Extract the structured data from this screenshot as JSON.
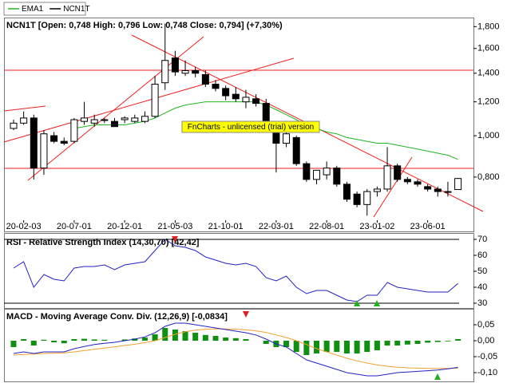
{
  "chart_data": [
    {
      "type": "candlestick",
      "title": "NCN1T [Open: 0,748 High: 0,796 Low: 0,748 Close: 0,794] (+7,30%)",
      "watermark": "FnCharts - unlicensed (trial) version",
      "categories": [
        null,
        "20-02-03",
        null,
        null,
        null,
        null,
        "20-07-01",
        null,
        null,
        null,
        null,
        "20-12-01",
        null,
        null,
        null,
        null,
        "21-05-03",
        null,
        null,
        null,
        null,
        "21-10-01",
        null,
        null,
        null,
        null,
        "22-03-01",
        null,
        null,
        null,
        null,
        "22-08-01",
        null,
        null,
        null,
        null,
        "23-01-02",
        null,
        null,
        null,
        null,
        "23-06-01",
        null,
        null,
        null
      ],
      "log_scale": true,
      "ylim": [
        0.61,
        1.89
      ],
      "yticks": [
        {
          "value": 1.8,
          "label": "1,800"
        },
        {
          "value": 1.6,
          "label": "1,600"
        },
        {
          "value": 1.4,
          "label": "1,400"
        },
        {
          "value": 1.2,
          "label": "1,200"
        },
        {
          "value": 1.0,
          "label": "1,000"
        },
        {
          "value": 0.8,
          "label": "0,800"
        }
      ],
      "series": [
        {
          "name": "EMA1",
          "type": "line",
          "color": "#22b422",
          "values": [
            null,
            null,
            null,
            null,
            null,
            null,
            1.04,
            1.05,
            1.06,
            1.06,
            1.06,
            1.06,
            1.07,
            1.08,
            1.1,
            1.13,
            1.16,
            1.18,
            1.19,
            1.2,
            1.2,
            1.2,
            1.2,
            1.2,
            1.2,
            1.18,
            1.15,
            1.12,
            1.09,
            1.06,
            1.04,
            1.02,
            1.01,
            0.99,
            0.98,
            0.97,
            0.96,
            0.96,
            0.95,
            0.94,
            0.93,
            0.92,
            0.91,
            0.9,
            0.88
          ]
        },
        {
          "name": "NCN1T",
          "type": "candlestick",
          "color": "#000000",
          "open": [
            1.04,
            1.07,
            1.1,
            0.84,
            1.0,
            0.97,
            0.97,
            1.08,
            1.07,
            1.09,
            1.08,
            1.09,
            1.08,
            1.08,
            1.11,
            1.33,
            1.52,
            1.4,
            1.42,
            1.39,
            1.32,
            1.29,
            1.25,
            1.2,
            1.22,
            1.19,
            1.05,
            0.96,
            0.99,
            0.86,
            0.79,
            0.81,
            0.84,
            0.77,
            0.73,
            0.69,
            0.74,
            0.75,
            0.85,
            0.79,
            0.78,
            0.76,
            0.75,
            0.74,
            0.748
          ],
          "high": [
            1.09,
            1.14,
            1.12,
            1.03,
            1.02,
            0.99,
            1.1,
            1.2,
            1.12,
            1.1,
            1.1,
            1.11,
            1.12,
            1.14,
            1.38,
            1.83,
            1.58,
            1.5,
            1.45,
            1.42,
            1.35,
            1.31,
            1.3,
            1.28,
            1.25,
            1.22,
            1.07,
            1.02,
            1.0,
            0.87,
            0.83,
            0.87,
            0.85,
            0.78,
            0.74,
            0.75,
            0.76,
            0.94,
            0.86,
            0.8,
            0.79,
            0.77,
            0.76,
            0.78,
            0.796
          ],
          "low": [
            1.03,
            1.06,
            0.79,
            0.81,
            0.96,
            0.95,
            0.96,
            1.06,
            1.05,
            1.07,
            1.05,
            1.07,
            1.07,
            1.07,
            1.1,
            1.28,
            1.38,
            1.38,
            1.37,
            1.3,
            1.27,
            1.21,
            1.2,
            1.16,
            1.17,
            1.03,
            0.82,
            0.94,
            0.85,
            0.78,
            0.77,
            0.79,
            0.76,
            0.7,
            0.68,
            0.65,
            0.72,
            0.74,
            0.78,
            0.77,
            0.76,
            0.74,
            0.72,
            0.72,
            0.748
          ],
          "close": [
            1.07,
            1.1,
            0.84,
            1.01,
            0.97,
            0.96,
            1.09,
            1.1,
            1.09,
            1.09,
            1.05,
            1.1,
            1.1,
            1.11,
            1.32,
            1.5,
            1.41,
            1.42,
            1.4,
            1.32,
            1.29,
            1.24,
            1.22,
            1.23,
            1.19,
            1.04,
            0.96,
            1.01,
            0.86,
            0.79,
            0.83,
            0.84,
            0.77,
            0.71,
            0.69,
            0.74,
            0.75,
            0.85,
            0.79,
            0.78,
            0.77,
            0.75,
            0.74,
            0.74,
            0.794
          ]
        }
      ]
    },
    {
      "type": "line",
      "title": "RSI - Relative Strength Index (14,30,70) [42,42]",
      "ylim": [
        27.5,
        72.5
      ],
      "yticks": [
        70,
        60,
        50,
        40,
        30
      ],
      "reference_lines": [
        70,
        30
      ],
      "series": [
        {
          "type": "line",
          "color": "#2222c0",
          "values": [
            52,
            56,
            40,
            48,
            45,
            44,
            52,
            53,
            53,
            54,
            51,
            54,
            55,
            56,
            63,
            70,
            66,
            65,
            63,
            59,
            57,
            55,
            54,
            55,
            53,
            46,
            44,
            47,
            40,
            36,
            38,
            38,
            35,
            32,
            31,
            35,
            35,
            43,
            40,
            39,
            38,
            37,
            37,
            37,
            42.42
          ]
        }
      ]
    },
    {
      "type": "bar",
      "title": "MACD - Moving Average Conv. Div. (12,26,9) [-0,0834]",
      "ylim": [
        -0.1225,
        0.0975
      ],
      "yticks": [
        {
          "value": 0.05,
          "label": "0,05"
        },
        {
          "value": 0,
          "label": "0,00"
        },
        {
          "value": -0.05,
          "label": "-0,05"
        },
        {
          "value": -0.1,
          "label": "-0,10"
        }
      ],
      "series": [
        {
          "type": "bar",
          "color": "#109010",
          "values": [
            -0.02,
            0.005,
            -0.015,
            0.003,
            -0.005,
            -0.008,
            0.005,
            0.006,
            0.004,
            0.003,
            0.0,
            0.004,
            0.007,
            0.01,
            0.02,
            0.04,
            0.035,
            0.03,
            0.025,
            0.018,
            0.015,
            0.01,
            0.008,
            0.005,
            0.0,
            -0.01,
            -0.02,
            -0.02,
            -0.035,
            -0.045,
            -0.04,
            -0.035,
            -0.035,
            -0.04,
            -0.04,
            -0.035,
            -0.03,
            -0.015,
            -0.015,
            -0.012,
            -0.01,
            -0.006,
            -0.004,
            -0.002,
            0.005
          ]
        },
        {
          "type": "line",
          "color": "#f0a030",
          "values": [
            -0.045,
            -0.043,
            -0.042,
            -0.04,
            -0.039,
            -0.038,
            -0.035,
            -0.031,
            -0.027,
            -0.023,
            -0.019,
            -0.015,
            -0.011,
            -0.006,
            0.0,
            0.01,
            0.02,
            0.028,
            0.033,
            0.036,
            0.037,
            0.037,
            0.036,
            0.034,
            0.031,
            0.026,
            0.018,
            0.01,
            0.0,
            -0.012,
            -0.025,
            -0.035,
            -0.045,
            -0.055,
            -0.063,
            -0.07,
            -0.076,
            -0.08,
            -0.083,
            -0.085,
            -0.086,
            -0.087,
            -0.087,
            -0.087,
            -0.086
          ]
        },
        {
          "type": "line",
          "color": "#2222c0",
          "values": [
            -0.04,
            -0.035,
            -0.04,
            -0.035,
            -0.035,
            -0.035,
            -0.025,
            -0.018,
            -0.012,
            -0.008,
            -0.005,
            0.0,
            0.005,
            0.012,
            0.025,
            0.045,
            0.055,
            0.055,
            0.05,
            0.045,
            0.04,
            0.035,
            0.03,
            0.025,
            0.018,
            0.005,
            -0.01,
            -0.02,
            -0.04,
            -0.06,
            -0.07,
            -0.08,
            -0.09,
            -0.1,
            -0.105,
            -0.11,
            -0.11,
            -0.105,
            -0.1,
            -0.098,
            -0.096,
            -0.094,
            -0.092,
            -0.088,
            -0.0834
          ]
        }
      ]
    }
  ]
}
